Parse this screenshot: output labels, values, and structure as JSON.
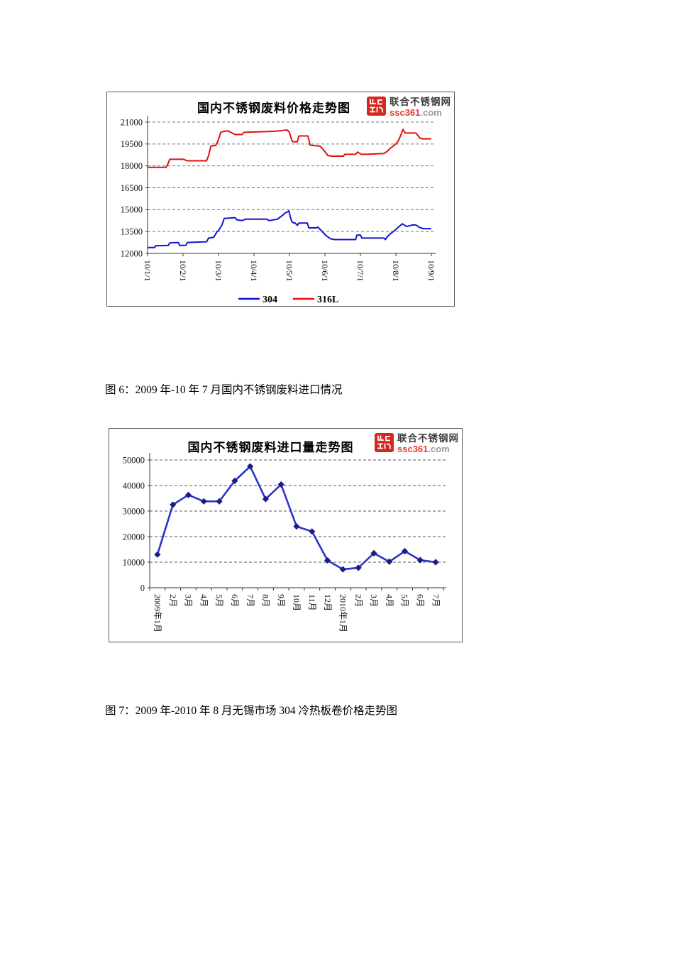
{
  "page_background": "#ffffff",
  "figures": {
    "fig6": {
      "caption": "图 6：2009 年-10 年 7 月国内不锈钢废料进口情况"
    },
    "fig7": {
      "caption": "图 7：2009 年-2010 年 8 月无锡市场 304 冷热板卷价格走势图"
    }
  },
  "logo": {
    "site_name": "联合不锈钢网",
    "domain": "ssc361",
    "domain_suffix": ".com",
    "icon_color": "#d5281e",
    "domain_color": "#e8392a"
  },
  "chart_data": [
    {
      "type": "line",
      "title": "国内不锈钢废料价格走势图",
      "x_tick_labels": [
        "10/1/1",
        "10/2/1",
        "10/3/1",
        "10/4/1",
        "10/5/1",
        "10/6/1",
        "10/7/1",
        "10/8/1",
        "10/9/1"
      ],
      "ylim": [
        12000,
        21000
      ],
      "y_ticks": [
        12000,
        13500,
        15000,
        16500,
        18000,
        19500,
        21000
      ],
      "grid": "horizontal-dashed",
      "legend_position": "bottom",
      "series": [
        {
          "name": "304",
          "color": "#1414cc",
          "points": [
            [
              0.0,
              12400
            ],
            [
              0.025,
              12400
            ],
            [
              0.028,
              12520
            ],
            [
              0.073,
              12550
            ],
            [
              0.078,
              12720
            ],
            [
              0.108,
              12750
            ],
            [
              0.113,
              12550
            ],
            [
              0.135,
              12550
            ],
            [
              0.14,
              12750
            ],
            [
              0.208,
              12800
            ],
            [
              0.215,
              13050
            ],
            [
              0.233,
              13100
            ],
            [
              0.245,
              13500
            ],
            [
              0.25,
              13560
            ],
            [
              0.262,
              13950
            ],
            [
              0.27,
              14400
            ],
            [
              0.308,
              14450
            ],
            [
              0.315,
              14300
            ],
            [
              0.333,
              14250
            ],
            [
              0.345,
              14350
            ],
            [
              0.42,
              14350
            ],
            [
              0.428,
              14250
            ],
            [
              0.445,
              14300
            ],
            [
              0.458,
              14350
            ],
            [
              0.465,
              14450
            ],
            [
              0.475,
              14600
            ],
            [
              0.483,
              14750
            ],
            [
              0.493,
              14850
            ],
            [
              0.498,
              14920
            ],
            [
              0.503,
              14500
            ],
            [
              0.508,
              14200
            ],
            [
              0.513,
              14100
            ],
            [
              0.52,
              14080
            ],
            [
              0.528,
              13920
            ],
            [
              0.533,
              14080
            ],
            [
              0.563,
              14080
            ],
            [
              0.568,
              13750
            ],
            [
              0.595,
              13750
            ],
            [
              0.6,
              13800
            ],
            [
              0.613,
              13550
            ],
            [
              0.628,
              13230
            ],
            [
              0.645,
              13000
            ],
            [
              0.658,
              12950
            ],
            [
              0.733,
              12950
            ],
            [
              0.738,
              13260
            ],
            [
              0.75,
              13260
            ],
            [
              0.755,
              13050
            ],
            [
              0.833,
              13050
            ],
            [
              0.838,
              12950
            ],
            [
              0.845,
              13150
            ],
            [
              0.858,
              13390
            ],
            [
              0.87,
              13550
            ],
            [
              0.883,
              13790
            ],
            [
              0.898,
              14030
            ],
            [
              0.913,
              13840
            ],
            [
              0.933,
              13950
            ],
            [
              0.945,
              13950
            ],
            [
              0.958,
              13790
            ],
            [
              0.97,
              13700
            ],
            [
              1.0,
              13700
            ]
          ]
        },
        {
          "name": "316L",
          "color": "#e01010",
          "points": [
            [
              0.0,
              17900
            ],
            [
              0.065,
              17900
            ],
            [
              0.07,
              18050
            ],
            [
              0.078,
              18450
            ],
            [
              0.128,
              18450
            ],
            [
              0.138,
              18350
            ],
            [
              0.208,
              18350
            ],
            [
              0.215,
              18700
            ],
            [
              0.223,
              19350
            ],
            [
              0.24,
              19400
            ],
            [
              0.248,
              19700
            ],
            [
              0.258,
              20300
            ],
            [
              0.265,
              20350
            ],
            [
              0.283,
              20400
            ],
            [
              0.308,
              20150
            ],
            [
              0.333,
              20150
            ],
            [
              0.34,
              20300
            ],
            [
              0.42,
              20350
            ],
            [
              0.47,
              20400
            ],
            [
              0.483,
              20450
            ],
            [
              0.493,
              20450
            ],
            [
              0.5,
              20300
            ],
            [
              0.508,
              19750
            ],
            [
              0.513,
              19650
            ],
            [
              0.528,
              19650
            ],
            [
              0.533,
              20050
            ],
            [
              0.565,
              20050
            ],
            [
              0.573,
              19420
            ],
            [
              0.608,
              19350
            ],
            [
              0.615,
              19200
            ],
            [
              0.623,
              19030
            ],
            [
              0.635,
              18715
            ],
            [
              0.648,
              18665
            ],
            [
              0.69,
              18665
            ],
            [
              0.695,
              18790
            ],
            [
              0.733,
              18790
            ],
            [
              0.74,
              18950
            ],
            [
              0.753,
              18790
            ],
            [
              0.778,
              18800
            ],
            [
              0.833,
              18850
            ],
            [
              0.845,
              19000
            ],
            [
              0.855,
              19200
            ],
            [
              0.865,
              19350
            ],
            [
              0.875,
              19500
            ],
            [
              0.883,
              19700
            ],
            [
              0.89,
              20000
            ],
            [
              0.9,
              20500
            ],
            [
              0.908,
              20250
            ],
            [
              0.945,
              20250
            ],
            [
              0.95,
              20150
            ],
            [
              0.96,
              19900
            ],
            [
              0.97,
              19850
            ],
            [
              1.0,
              19850
            ]
          ]
        }
      ]
    },
    {
      "type": "line",
      "title": "国内不锈钢废料进口量走势图",
      "categories": [
        "2009年1月",
        "2月",
        "3月",
        "4月",
        "5月",
        "6月",
        "7月",
        "8月",
        "9月",
        "10月",
        "11月",
        "12月",
        "2010年1月",
        "2月",
        "3月",
        "4月",
        "5月",
        "6月",
        "7月"
      ],
      "values": [
        13000,
        32500,
        36300,
        33800,
        33800,
        41800,
        47500,
        34700,
        40400,
        24000,
        22000,
        10700,
        7200,
        7800,
        13500,
        10200,
        14300,
        10800,
        10000
      ],
      "ylim": [
        0,
        50000
      ],
      "y_ticks": [
        0,
        10000,
        20000,
        30000,
        40000,
        50000
      ],
      "grid": "horizontal-dashed",
      "line_color": "#2a35c8",
      "marker": "diamond",
      "marker_color": "#1c1c82"
    }
  ]
}
